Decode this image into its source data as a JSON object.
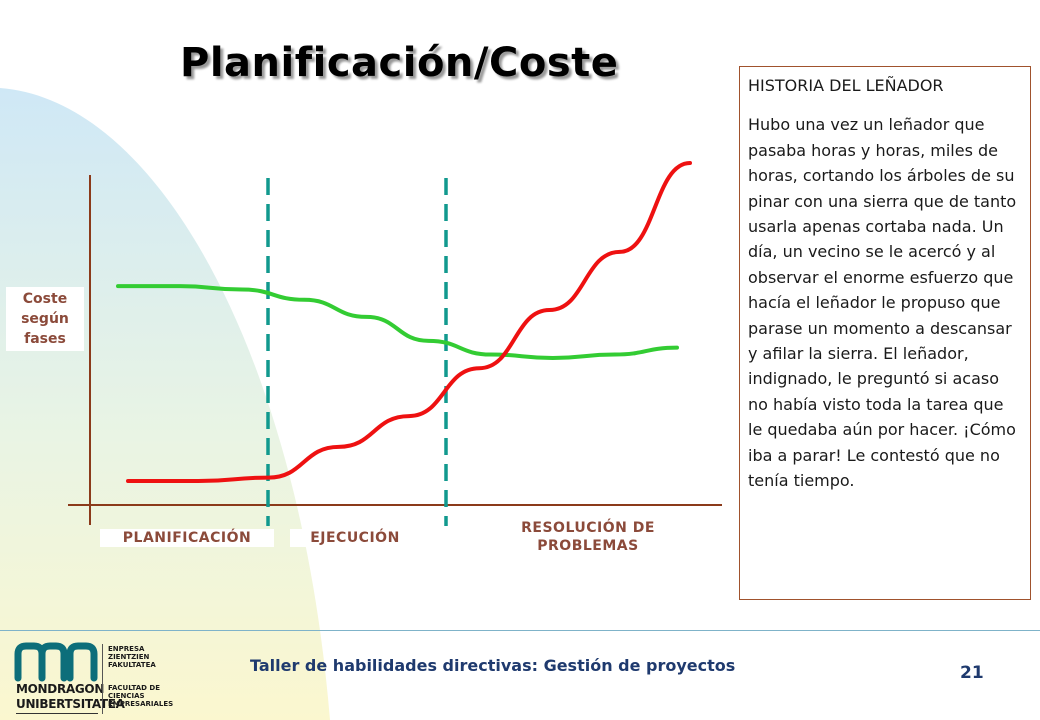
{
  "slide": {
    "title": "Planificación/Coste",
    "footer_title": "Taller de habilidades directivas: Gestión de proyectos",
    "page_number": "21"
  },
  "logo": {
    "name_line1": "MONDRAGON",
    "name_line2": "UNIBERTSITATEA",
    "sub_top": [
      "ENPRESA",
      "ZIENTZIEN",
      "FAKULTATEA"
    ],
    "sub_bottom": [
      "FACULTAD DE",
      "CIENCIAS",
      "EMPRESARIALES"
    ]
  },
  "story": {
    "heading": "HISTORIA DEL LEÑADOR",
    "body": "Hubo una vez un leñador que pasaba horas y horas, miles de horas, cortando los árboles de su pinar con una sierra que de tanto usarla apenas cortaba nada. Un día, un vecino se le acercó y al observar el enorme esfuerzo que hacía el leñador le propuso que parase un momento a descansar y afilar la sierra. El leñador, indignado, le preguntó si acaso no había visto toda la tarea que le quedaba aún por hacer. ¡Cómo iba a parar! Le contestó que no tenía tiempo."
  },
  "chart_data": {
    "type": "line",
    "ylabel_lines": [
      "Coste",
      "según",
      "fases"
    ],
    "phases": [
      "PLANIFICACIÓN",
      "EJECUCIÓN",
      "RESOLUCIÓN DE PROBLEMAS"
    ],
    "series": [
      {
        "color": "#33cc33",
        "values": [
          0.64,
          0.64,
          0.63,
          0.6,
          0.55,
          0.48,
          0.44,
          0.43,
          0.44,
          0.46
        ]
      },
      {
        "color": "#ee1111",
        "values": [
          0.07,
          0.07,
          0.08,
          0.17,
          0.26,
          0.4,
          0.57,
          0.74,
          1.0
        ]
      }
    ],
    "colors": {
      "axis": "#8b3a1a",
      "divider": "#11998e",
      "label": "#8b4a3a"
    }
  }
}
